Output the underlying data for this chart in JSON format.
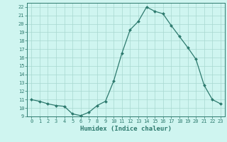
{
  "x": [
    0,
    1,
    2,
    3,
    4,
    5,
    6,
    7,
    8,
    9,
    10,
    11,
    12,
    13,
    14,
    15,
    16,
    17,
    18,
    19,
    20,
    21,
    22,
    23
  ],
  "y": [
    11.0,
    10.8,
    10.5,
    10.3,
    10.2,
    9.3,
    9.1,
    9.5,
    10.3,
    10.8,
    13.2,
    16.5,
    19.3,
    20.3,
    22.0,
    21.5,
    21.2,
    19.8,
    18.5,
    17.2,
    15.8,
    12.7,
    11.0,
    10.5
  ],
  "line_color": "#2d7a6e",
  "marker": "D",
  "marker_size": 2.0,
  "bg_color": "#cff5f0",
  "grid_color": "#a8d8d0",
  "xlabel": "Humidex (Indice chaleur)",
  "xlim": [
    -0.5,
    23.5
  ],
  "ylim": [
    9,
    22.5
  ],
  "yticks": [
    9,
    10,
    11,
    12,
    13,
    14,
    15,
    16,
    17,
    18,
    19,
    20,
    21,
    22
  ],
  "xticks": [
    0,
    1,
    2,
    3,
    4,
    5,
    6,
    7,
    8,
    9,
    10,
    11,
    12,
    13,
    14,
    15,
    16,
    17,
    18,
    19,
    20,
    21,
    22,
    23
  ],
  "tick_fontsize": 5.0,
  "label_fontsize": 6.5
}
